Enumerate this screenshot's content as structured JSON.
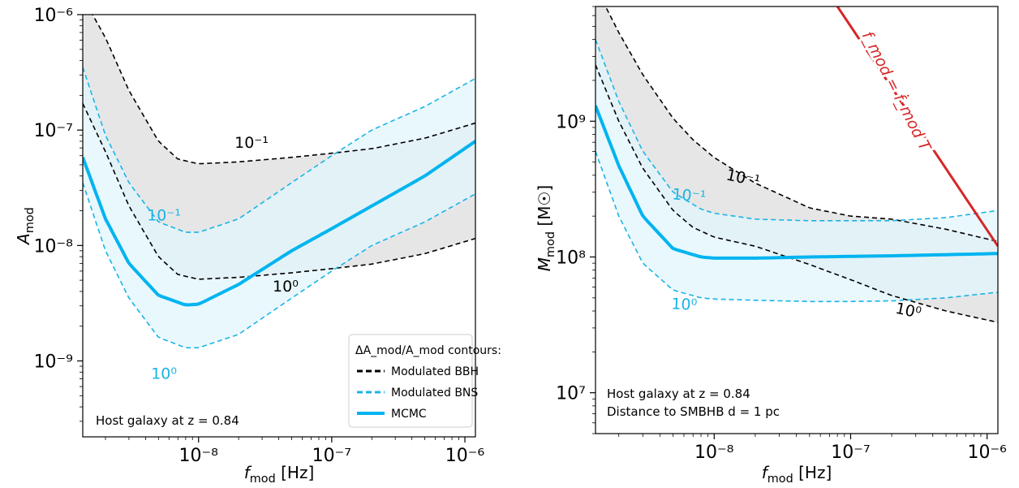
{
  "colors": {
    "bbh": "#000000",
    "bns": "#1ab4e6",
    "mcmc": "#00b4f0",
    "gray_fill": "#e6e6e6",
    "blue_fill": "#e1f5fc",
    "overlap_fill": "#cfe0e6",
    "red": "#d62728"
  },
  "chart_data": [
    {
      "type": "line",
      "panel": "left",
      "xlabel": "f_mod [Hz]",
      "ylabel": "A_mod",
      "xscale": "log",
      "yscale": "log",
      "xlim": [
        1.35e-09,
        1.2e-06
      ],
      "ylim": [
        2.2e-10,
        1e-06
      ],
      "xticks": [
        {
          "value": 1e-08,
          "label": "10⁻⁸"
        },
        {
          "value": 1e-07,
          "label": "10⁻⁷"
        },
        {
          "value": 1e-06,
          "label": "10⁻⁶"
        }
      ],
      "yticks": [
        {
          "value": 1e-09,
          "label": "10⁻⁹"
        },
        {
          "value": 1e-08,
          "label": "10⁻⁸"
        },
        {
          "value": 1e-07,
          "label": "10⁻⁷"
        },
        {
          "value": 1e-06,
          "label": "10⁻⁶"
        }
      ],
      "annotation": "Host galaxy at z = 0.84",
      "legend": {
        "title": "ΔA_mod/A_mod contours:",
        "placement": "lower right",
        "entries": [
          {
            "label": "Modulated BBH",
            "style": "dashed",
            "color": "#000000"
          },
          {
            "label": "Modulated BNS",
            "style": "dashed",
            "color": "#1ab4e6"
          },
          {
            "label": "MCMC",
            "style": "solid",
            "color": "#00b4f0"
          }
        ]
      },
      "series": [
        {
          "name": "Modulated BBH",
          "contour": "10⁻¹",
          "style": "dashed",
          "color": "#000000",
          "x": [
            1.6e-09,
            2e-09,
            3e-09,
            5e-09,
            7e-09,
            1e-08,
            2e-08,
            5e-08,
            1e-07,
            2e-07,
            5e-07,
            1.2e-06
          ],
          "y": [
            1e-06,
            6.3e-07,
            2.2e-07,
            8e-08,
            5.6e-08,
            5.1e-08,
            5.3e-08,
            5.8e-08,
            6.3e-08,
            6.9e-08,
            8.5e-08,
            1.15e-07
          ]
        },
        {
          "name": "Modulated BBH",
          "contour": "10⁰",
          "style": "dashed",
          "color": "#000000",
          "x": [
            1.35e-09,
            2e-09,
            3e-09,
            5e-09,
            7e-09,
            1e-08,
            2e-08,
            5e-08,
            1e-07,
            2e-07,
            5e-07,
            1.2e-06
          ],
          "y": [
            1.7e-07,
            6.5e-08,
            2.2e-08,
            8e-09,
            5.6e-09,
            5.1e-09,
            5.3e-09,
            5.8e-09,
            6.3e-09,
            6.9e-09,
            8.5e-09,
            1.15e-08
          ]
        },
        {
          "name": "Modulated BNS",
          "contour": "10⁻¹",
          "style": "dashed",
          "color": "#1ab4e6",
          "x": [
            1.35e-09,
            2e-09,
            3e-09,
            5e-09,
            8e-09,
            1e-08,
            2e-08,
            5e-08,
            1e-07,
            2e-07,
            5e-07,
            1.2e-06
          ],
          "y": [
            3.5e-07,
            9e-08,
            3.5e-08,
            1.6e-08,
            1.3e-08,
            1.3e-08,
            1.7e-08,
            3.5e-08,
            6e-08,
            1e-07,
            1.6e-07,
            2.8e-07
          ]
        },
        {
          "name": "Modulated BNS",
          "contour": "10⁰",
          "style": "dashed",
          "color": "#1ab4e6",
          "x": [
            1.35e-09,
            2e-09,
            3e-09,
            5e-09,
            8e-09,
            1e-08,
            2e-08,
            5e-08,
            1e-07,
            2e-07,
            5e-07,
            1.2e-06
          ],
          "y": [
            3.5e-08,
            9e-09,
            3.5e-09,
            1.6e-09,
            1.3e-09,
            1.3e-09,
            1.7e-09,
            3.5e-09,
            6e-09,
            1e-08,
            1.6e-08,
            2.8e-08
          ]
        },
        {
          "name": "MCMC",
          "style": "solid",
          "color": "#00b4f0",
          "x": [
            1.35e-09,
            2e-09,
            3e-09,
            5e-09,
            8e-09,
            1e-08,
            2e-08,
            5e-08,
            1e-07,
            2e-07,
            5e-07,
            1.2e-06
          ],
          "y": [
            5.8e-08,
            1.7e-08,
            7e-09,
            3.7e-09,
            3.05e-09,
            3.1e-09,
            4.6e-09,
            9e-09,
            1.4e-08,
            2.2e-08,
            4e-08,
            8e-08
          ]
        }
      ],
      "bands": [
        {
          "between": [
            "Modulated BBH 10⁻¹",
            "Modulated BBH 10⁰"
          ],
          "color": "#e6e6e6"
        },
        {
          "between": [
            "Modulated BNS 10⁻¹",
            "Modulated BNS 10⁰"
          ],
          "color": "#e1f5fc"
        }
      ],
      "contour_labels": [
        {
          "text": "10⁻¹",
          "x": 2.5e-08,
          "y": 7e-08,
          "color": "#000000",
          "rotate": 0
        },
        {
          "text": "10⁰",
          "x": 4.5e-08,
          "y": 4e-09,
          "color": "#000000",
          "rotate": 0
        },
        {
          "text": "10⁻¹",
          "x": 5.5e-09,
          "y": 1.65e-08,
          "color": "#1ab4e6",
          "rotate": 0
        },
        {
          "text": "10⁰",
          "x": 5.5e-09,
          "y": 7e-10,
          "color": "#1ab4e6",
          "rotate": 0
        }
      ]
    },
    {
      "type": "line",
      "panel": "right",
      "xlabel": "f_mod [Hz]",
      "ylabel": "M_mod [M☉]",
      "xscale": "log",
      "yscale": "log",
      "xlim": [
        1.35e-09,
        1.2e-06
      ],
      "ylim": [
        5000000.0,
        7000000000.0
      ],
      "xticks": [
        {
          "value": 1e-08,
          "label": "10⁻⁸"
        },
        {
          "value": 1e-07,
          "label": "10⁻⁷"
        },
        {
          "value": 1e-06,
          "label": "10⁻⁶"
        }
      ],
      "yticks": [
        {
          "value": 10000000.0,
          "label": "10⁷"
        },
        {
          "value": 100000000.0,
          "label": "10⁸"
        },
        {
          "value": 1000000000.0,
          "label": "10⁹"
        }
      ],
      "annotation_lines": [
        "Host galaxy at z = 0.84",
        "Distance to SMBHB d = 1 pc"
      ],
      "series": [
        {
          "name": "Modulated BBH",
          "contour": "10⁻¹",
          "style": "dashed",
          "color": "#000000",
          "x": [
            1.6e-09,
            2e-09,
            3e-09,
            5e-09,
            7e-09,
            1e-08,
            2e-08,
            5e-08,
            1e-07,
            2e-07,
            5e-07,
            1.2e-06
          ],
          "y": [
            7000000000.0,
            4500000000.0,
            2200000000.0,
            1050000000.0,
            730000000.0,
            540000000.0,
            350000000.0,
            230000000.0,
            200000000.0,
            190000000.0,
            160000000.0,
            130000000.0
          ]
        },
        {
          "name": "Modulated BBH",
          "contour": "10⁰",
          "style": "dashed",
          "color": "#000000",
          "x": [
            1.35e-09,
            2e-09,
            3e-09,
            5e-09,
            7e-09,
            1e-08,
            2e-08,
            5e-08,
            1e-07,
            2e-07,
            5e-07,
            1.2e-06
          ],
          "y": [
            2600000000.0,
            1000000000.0,
            450000000.0,
            220000000.0,
            165000000.0,
            140000000.0,
            120000000.0,
            88000000.0,
            68000000.0,
            52000000.0,
            40000000.0,
            33000000.0
          ]
        },
        {
          "name": "Modulated BNS",
          "contour": "10⁻¹",
          "style": "dashed",
          "color": "#1ab4e6",
          "x": [
            1.35e-09,
            2e-09,
            3e-09,
            5e-09,
            8e-09,
            1e-08,
            2e-08,
            5e-08,
            1e-07,
            2e-07,
            5e-07,
            1.2e-06
          ],
          "y": [
            4000000000.0,
            1400000000.0,
            600000000.0,
            300000000.0,
            225000000.0,
            210000000.0,
            190000000.0,
            185000000.0,
            185000000.0,
            185000000.0,
            195000000.0,
            220000000.0
          ]
        },
        {
          "name": "Modulated BNS",
          "contour": "10⁰",
          "style": "dashed",
          "color": "#1ab4e6",
          "x": [
            1.35e-09,
            2e-09,
            3e-09,
            5e-09,
            8e-09,
            1e-08,
            2e-08,
            5e-08,
            1e-07,
            2e-07,
            5e-07,
            1.2e-06
          ],
          "y": [
            600000000.0,
            200000000.0,
            90000000.0,
            57000000.0,
            50000000.0,
            49000000.0,
            48000000.0,
            47000000.0,
            47000000.0,
            47500000.0,
            50000000.0,
            55000000.0
          ]
        },
        {
          "name": "MCMC",
          "style": "solid",
          "color": "#00b4f0",
          "x": [
            1.35e-09,
            2e-09,
            3e-09,
            5e-09,
            8e-09,
            1e-08,
            2e-08,
            5e-08,
            1e-07,
            2e-07,
            5e-07,
            1.2e-06
          ],
          "y": [
            1300000000.0,
            470000000.0,
            200000000.0,
            115000000.0,
            100000000.0,
            98000000.0,
            98000000.0,
            100000000.0,
            101000000.0,
            102000000.0,
            104000000.0,
            106000000.0
          ]
        },
        {
          "name": "f_mod = ḟ_mod T",
          "style": "solid",
          "color": "#d62728",
          "x": [
            8e-08,
            1.2e-06
          ],
          "y": [
            7000000000.0,
            120000000.0
          ]
        }
      ],
      "bands": [
        {
          "between": [
            "Modulated BBH 10⁻¹",
            "Modulated BBH 10⁰"
          ],
          "color": "#e6e6e6"
        },
        {
          "between": [
            "Modulated BNS 10⁻¹",
            "Modulated BNS 10⁰"
          ],
          "color": "#e1f5fc"
        }
      ],
      "contour_labels": [
        {
          "text": "10⁻¹",
          "x": 1.6e-08,
          "y": 350000000.0,
          "color": "#000000",
          "rotate": 12
        },
        {
          "text": "10⁰",
          "x": 2.6e-07,
          "y": 37000000.0,
          "color": "#000000",
          "rotate": 12
        },
        {
          "text": "10⁻¹",
          "x": 6.5e-09,
          "y": 260000000.0,
          "color": "#1ab4e6",
          "rotate": 5
        },
        {
          "text": "10⁰",
          "x": 6e-09,
          "y": 41000000.0,
          "color": "#1ab4e6",
          "rotate": 3
        },
        {
          "text": "f_mod = ḟ_mod T",
          "x": 2e-07,
          "y": 1600000000.0,
          "color": "#d62728",
          "rotate": 63
        }
      ]
    }
  ]
}
